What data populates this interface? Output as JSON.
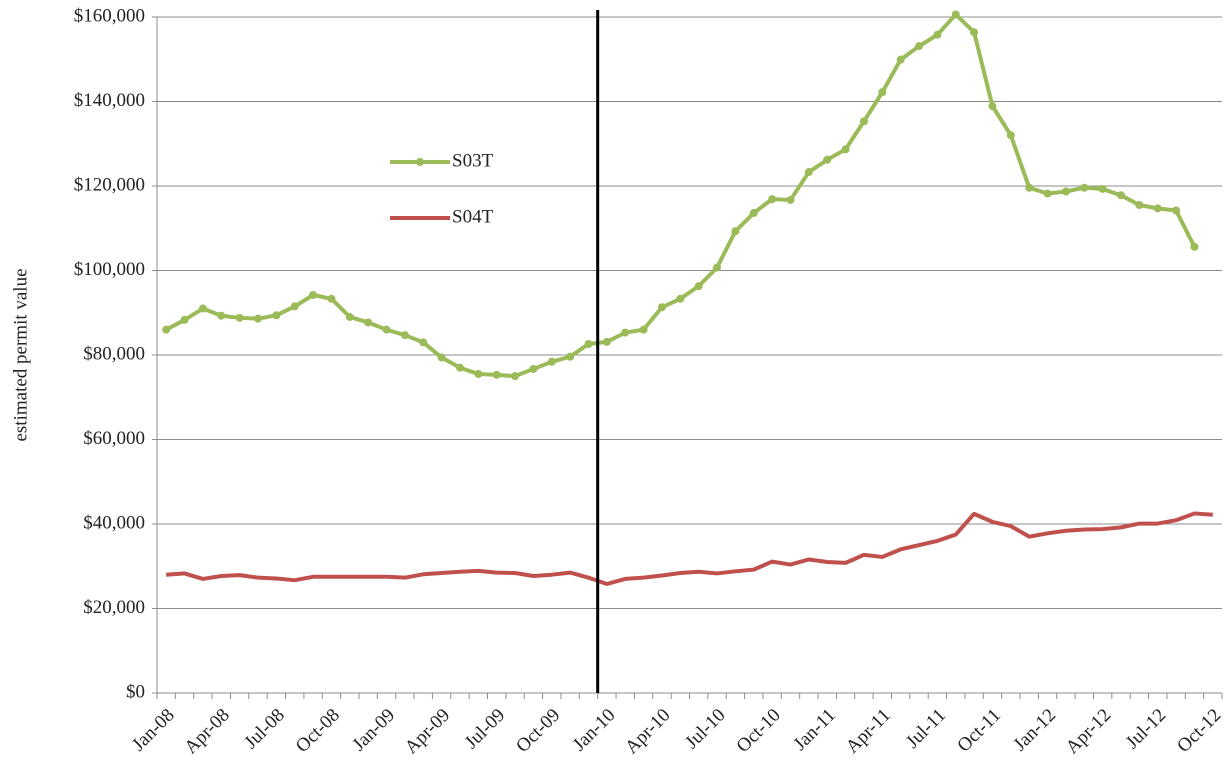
{
  "chart_data": {
    "type": "line",
    "y_label": "estimated permit value",
    "categories": [
      "Jan-08",
      null,
      null,
      "Apr-08",
      null,
      null,
      "Jul-08",
      null,
      null,
      "Oct-08",
      null,
      null,
      "Jan-09",
      null,
      null,
      "Apr-09",
      null,
      null,
      "Jul-09",
      null,
      null,
      "Oct-09",
      null,
      null,
      "Jan-10",
      null,
      null,
      "Apr-10",
      null,
      null,
      "Jul-10",
      null,
      null,
      "Oct-10",
      null,
      null,
      "Jan-11",
      null,
      null,
      "Apr-11",
      null,
      null,
      "Jul-11",
      null,
      null,
      "Oct-11",
      null,
      null,
      "Jan-12",
      null,
      null,
      "Apr-12",
      null,
      null,
      "Jul-12",
      null,
      null,
      "Oct-12"
    ],
    "series": [
      {
        "name": "S03T",
        "color": "#9bbb59",
        "marker": "circle",
        "values": [
          86000,
          88300,
          91000,
          89300,
          88800,
          88600,
          89400,
          91500,
          94200,
          93300,
          89000,
          87700,
          86000,
          84700,
          83000,
          79400,
          77000,
          75500,
          75300,
          75000,
          76700,
          78400,
          79600,
          82600,
          83100,
          85300,
          86000,
          91300,
          93300,
          96300,
          100700,
          109300,
          113600,
          116900,
          116700,
          123300,
          126200,
          128700,
          135300,
          142200,
          149900,
          153100,
          155800,
          160600,
          156400,
          138900,
          132000,
          119600,
          118200,
          118700,
          119600,
          119300,
          117800,
          115500,
          114700,
          114200,
          105600,
          null
        ]
      },
      {
        "name": "S04T",
        "color": "#c0504d",
        "marker": null,
        "values": [
          28000,
          28300,
          27000,
          27700,
          27900,
          27300,
          27100,
          26700,
          27500,
          27500,
          27500,
          27500,
          27500,
          27300,
          28100,
          28400,
          28700,
          28900,
          28500,
          28400,
          27700,
          28000,
          28500,
          27300,
          25800,
          27000,
          27300,
          27800,
          28400,
          28700,
          28300,
          28800,
          29200,
          31100,
          30400,
          31600,
          31000,
          30800,
          32700,
          32200,
          34000,
          35000,
          36000,
          37500,
          42400,
          40500,
          39500,
          37000,
          37800,
          38400,
          38700,
          38800,
          39200,
          40100,
          40100,
          40900,
          42500,
          42200
        ]
      }
    ],
    "ylim": [
      0,
      160000
    ],
    "yticks": [
      {
        "value": 0,
        "label": "$0"
      },
      {
        "value": 20000,
        "label": "$20,000"
      },
      {
        "value": 40000,
        "label": "$40,000"
      },
      {
        "value": 60000,
        "label": "$60,000"
      },
      {
        "value": 80000,
        "label": "$80,000"
      },
      {
        "value": 100000,
        "label": "$100,000"
      },
      {
        "value": 120000,
        "label": "$120,000"
      },
      {
        "value": 140000,
        "label": "$140,000"
      },
      {
        "value": 160000,
        "label": "$160,000"
      }
    ],
    "grid": true,
    "legend": "upper left",
    "vline": "Jan-10"
  }
}
